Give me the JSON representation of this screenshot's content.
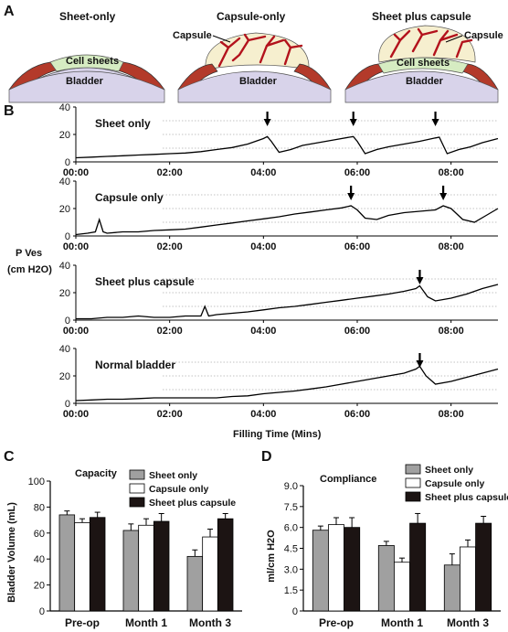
{
  "colors": {
    "bladder": "#d8d3ea",
    "muscle": "#b33a2a",
    "sheet": "#d6ecc2",
    "capsule": "#f6efcf",
    "vessel": "#b3121c",
    "sheet_bar": "#a0a0a0",
    "capsule_bar": "#ffffff",
    "combo_bar": "#1c1413",
    "trace": "#000000",
    "grid": "#888888"
  },
  "panel_a": {
    "letter": "A",
    "items": [
      {
        "title": "Sheet-only",
        "bladder_label": "Bladder",
        "sheet_label": "Cell sheets"
      },
      {
        "title": "Capsule-only",
        "bladder_label": "Bladder",
        "capsule_label": "Capsule"
      },
      {
        "title": "Sheet plus capsule",
        "bladder_label": "Bladder",
        "sheet_label": "Cell sheets",
        "capsule_label": "Capsule"
      }
    ]
  },
  "panel_b": {
    "letter": "B",
    "y_label_line1": "P Ves",
    "y_label_line2": "(cm H2O)",
    "x_label": "Filling Time (Mins)"
  },
  "chart_data": [
    {
      "type": "line",
      "panel": "B",
      "x_unit": "minutes",
      "xlim": [
        0,
        540
      ],
      "ylim": [
        0,
        40
      ],
      "y_ticks": [
        0,
        20,
        40
      ],
      "x_ticks": [
        "00:00",
        "02:00",
        "04:00",
        "06:00",
        "08:00"
      ],
      "x_tick_values": [
        0,
        120,
        240,
        360,
        480
      ],
      "xlabel": "Filling Time (Mins)",
      "ylabel": "P Ves (cm H2O)",
      "grid": "dotted horizontal",
      "traces": [
        {
          "label": "Sheet only",
          "voiding_arrows": [
            245,
            355,
            460
          ],
          "x": [
            0,
            20,
            40,
            60,
            80,
            100,
            120,
            140,
            160,
            180,
            200,
            220,
            240,
            245,
            250,
            260,
            275,
            290,
            310,
            330,
            350,
            355,
            360,
            370,
            385,
            400,
            420,
            440,
            460,
            465,
            475,
            490,
            505,
            520,
            540
          ],
          "y": [
            3,
            3.5,
            4,
            4.5,
            5,
            5.5,
            6,
            6.5,
            7.5,
            9,
            10.5,
            13,
            17,
            18.5,
            15,
            7,
            9,
            12,
            14,
            16,
            18,
            18.5,
            15,
            6,
            9,
            11,
            13,
            15,
            17.5,
            18,
            6,
            9,
            11,
            14,
            17
          ]
        },
        {
          "label": "Capsule only",
          "voiding_arrows": [
            352,
            470
          ],
          "x": [
            0,
            15,
            25,
            30,
            35,
            40,
            60,
            80,
            100,
            120,
            140,
            160,
            180,
            200,
            220,
            240,
            260,
            280,
            300,
            320,
            340,
            352,
            360,
            370,
            385,
            400,
            420,
            440,
            460,
            470,
            480,
            495,
            510,
            525,
            540
          ],
          "y": [
            1,
            2,
            3,
            12,
            3,
            2,
            3,
            3,
            4,
            4.5,
            5,
            6.5,
            8,
            9.5,
            11,
            12.5,
            14,
            16,
            17.5,
            19,
            20.5,
            22,
            19,
            13,
            12,
            15,
            17,
            18,
            19,
            22,
            20,
            12,
            10,
            15,
            20
          ]
        },
        {
          "label": "Sheet plus capsule",
          "voiding_arrows": [
            440
          ],
          "x": [
            0,
            20,
            40,
            60,
            80,
            100,
            120,
            140,
            160,
            165,
            170,
            180,
            200,
            220,
            240,
            260,
            280,
            300,
            320,
            340,
            360,
            380,
            400,
            420,
            435,
            440,
            450,
            460,
            480,
            500,
            520,
            540
          ],
          "y": [
            1,
            1,
            2,
            2,
            3,
            2,
            2,
            3,
            3,
            10,
            3,
            4,
            5,
            6,
            7.5,
            9,
            10,
            11.5,
            13,
            14.5,
            16,
            17.5,
            19,
            21,
            23,
            25,
            17,
            14,
            16,
            19,
            23,
            26
          ]
        },
        {
          "label": "Normal bladder",
          "voiding_arrows": [
            440
          ],
          "x": [
            0,
            20,
            40,
            60,
            80,
            100,
            120,
            140,
            160,
            180,
            200,
            220,
            240,
            260,
            280,
            300,
            320,
            340,
            360,
            380,
            400,
            420,
            435,
            440,
            448,
            460,
            480,
            500,
            520,
            540
          ],
          "y": [
            2,
            2.5,
            3,
            3,
            3.5,
            4,
            4,
            4,
            4,
            4,
            5,
            5.5,
            7,
            8,
            9,
            10.5,
            12,
            14,
            16,
            18,
            20,
            22,
            25,
            27,
            20,
            14,
            16,
            19,
            22,
            25
          ]
        }
      ]
    },
    {
      "type": "bar",
      "panel": "C",
      "title": "Capacity",
      "ylabel": "Bladder Volume (mL)",
      "ylim": [
        0,
        100
      ],
      "y_ticks": [
        0,
        20,
        40,
        60,
        80,
        100
      ],
      "categories": [
        "Pre-op",
        "Month 1",
        "Month 3"
      ],
      "legend": "top-right",
      "series": [
        {
          "name": "Sheet only",
          "values": [
            74,
            62,
            42
          ],
          "errors": [
            3,
            5,
            5
          ]
        },
        {
          "name": "Capsule only",
          "values": [
            68,
            66,
            57
          ],
          "errors": [
            3,
            5,
            6
          ]
        },
        {
          "name": "Sheet plus capsule",
          "values": [
            72,
            69,
            71
          ],
          "errors": [
            4,
            6,
            4
          ]
        }
      ]
    },
    {
      "type": "bar",
      "panel": "D",
      "title": "Compliance",
      "ylabel": "ml/cm H2O",
      "ylim": [
        0,
        9
      ],
      "y_ticks": [
        "0",
        "1.5",
        "3.0",
        "4.5",
        "6.0",
        "7.5",
        "9.0"
      ],
      "categories": [
        "Pre-op",
        "Month 1",
        "Month 3"
      ],
      "legend": "top-right",
      "series": [
        {
          "name": "Sheet only",
          "values": [
            5.8,
            4.7,
            3.3
          ],
          "errors": [
            0.3,
            0.3,
            0.8
          ]
        },
        {
          "name": "Capsule only",
          "values": [
            6.2,
            3.5,
            4.6
          ],
          "errors": [
            0.5,
            0.3,
            0.5
          ]
        },
        {
          "name": "Sheet plus capsule",
          "values": [
            6.0,
            6.3,
            6.3
          ],
          "errors": [
            0.7,
            0.7,
            0.5
          ]
        }
      ]
    }
  ],
  "panel_c_letter": "C",
  "panel_d_letter": "D"
}
